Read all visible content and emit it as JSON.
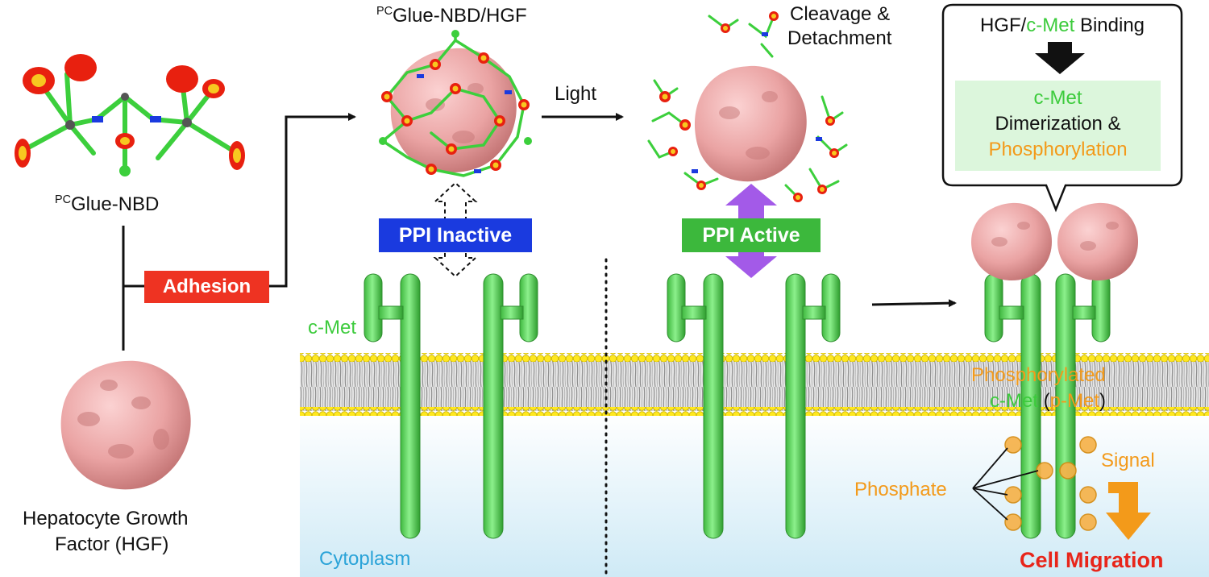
{
  "colors": {
    "receptor": "#5fd65f",
    "receptor_dark": "#35a835",
    "protein": "#e9a3a3",
    "protein_dark": "#c77878",
    "membrane_head": "#ffee22",
    "membrane_tail": "#9a9a9a",
    "cytoplasm": "#d6eef8",
    "adhesion_red": "#ee3322",
    "inactive_blue": "#1a3adf",
    "active_green": "#3cb83c",
    "arrow_purple": "#a35ae8",
    "orange": "#f39a1a",
    "cmet_text": "#3ccb3c",
    "migration_red": "#e8251a",
    "cytoplasm_text": "#2aa3d8",
    "pale_green_box": "#e0f7e0"
  },
  "labels": {
    "glue_nbd_sup": "PC",
    "glue_nbd": "Glue-NBD",
    "hgf_line1": "Hepatocyte Growth",
    "hgf_line2": "Factor (HGF)",
    "adhesion": "Adhesion",
    "complex_sup": "PC",
    "complex": "Glue-NBD/HGF",
    "light": "Light",
    "cleavage_line1": "Cleavage &",
    "cleavage_line2": "Detachment",
    "ppi_inactive": "PPI Inactive",
    "ppi_active": "PPI Active",
    "cmet": "c-Met",
    "cytoplasm": "Cytoplasm",
    "phosphorylated_line1": "Phosphorylated",
    "phosphorylated_cmet": "c-Met",
    "phosphorylated_open": " (",
    "phosphorylated_pmet": "p-Met",
    "phosphorylated_close": ")",
    "phosphate": "Phosphate",
    "signal": "Signal",
    "cell_migration": "Cell Migration"
  },
  "callout": {
    "binding_hgf": "HGF/",
    "binding_cmet": "c-Met",
    "binding_rest": " Binding",
    "cmet": "c-Met",
    "dimerization": "Dimerization &",
    "phosphorylation": "Phosphorylation"
  }
}
